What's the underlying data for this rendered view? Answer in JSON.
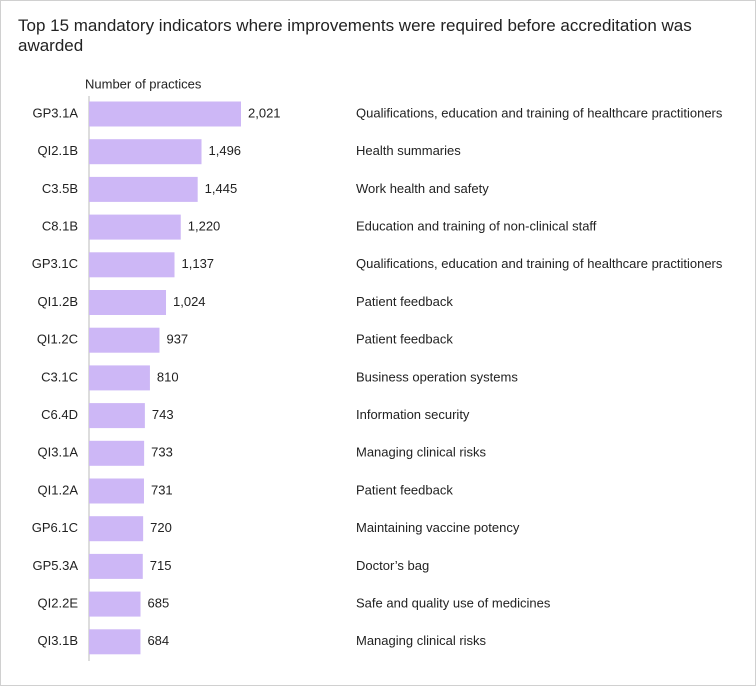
{
  "chart_data": {
    "type": "bar",
    "orientation": "horizontal",
    "title": "Top 15 mandatory indicators where improvements were required before accreditation was awarded",
    "x_label": "Number of practices",
    "categories": [
      "GP3.1A",
      "QI2.1B",
      "C3.5B",
      "C8.1B",
      "GP3.1C",
      "QI1.2B",
      "QI1.2C",
      "C3.1C",
      "C6.4D",
      "QI3.1A",
      "QI1.2A",
      "GP6.1C",
      "GP5.3A",
      "QI2.2E",
      "QI3.1B"
    ],
    "values": [
      2021,
      1496,
      1445,
      1220,
      1137,
      1024,
      937,
      810,
      743,
      733,
      731,
      720,
      715,
      685,
      684
    ],
    "value_labels": [
      "2,021",
      "1,496",
      "1,445",
      "1,220",
      "1,137",
      "1,024",
      "937",
      "810",
      "743",
      "733",
      "731",
      "720",
      "715",
      "685",
      "684"
    ],
    "descriptions": [
      "Qualifications, education and training of healthcare practitioners",
      "Health summaries",
      "Work health and safety",
      "Education and training of non-clinical staff",
      "Qualifications, education and training of healthcare practitioners",
      "Patient feedback",
      "Patient feedback",
      "Business operation systems",
      "Information security",
      "Managing clinical risks",
      "Patient feedback",
      "Maintaining vaccine potency",
      "Doctor’s bag",
      "Safe and quality use of medicines",
      "Managing clinical risks"
    ],
    "color": "#cdb7f6"
  }
}
